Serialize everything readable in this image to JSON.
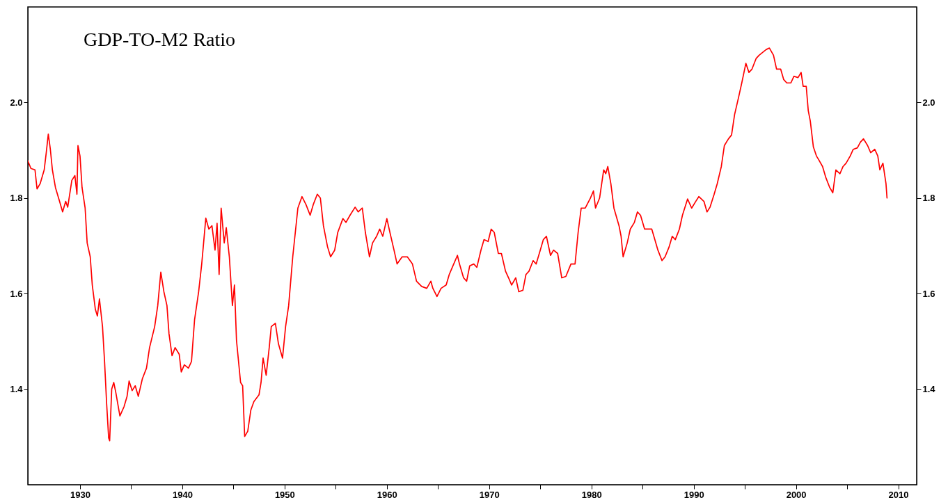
{
  "chart_data": {
    "type": "line",
    "title": "GDP-TO-M2 Ratio",
    "color": "#ff0000",
    "x": [
      1924.9,
      1925.2,
      1925.6,
      1925.8,
      1926.1,
      1926.5,
      1926.7,
      1926.9,
      1927.1,
      1927.3,
      1927.6,
      1928.0,
      1928.3,
      1928.6,
      1928.8,
      1929.2,
      1929.5,
      1929.7,
      1929.8,
      1930.0,
      1930.2,
      1930.5,
      1930.7,
      1931.0,
      1931.2,
      1931.5,
      1931.7,
      1931.9,
      1932.2,
      1932.4,
      1932.6,
      1932.8,
      1932.9,
      1933.1,
      1933.3,
      1933.5,
      1933.9,
      1934.3,
      1934.6,
      1934.8,
      1935.1,
      1935.4,
      1935.7,
      1936.1,
      1936.5,
      1936.8,
      1937.3,
      1937.6,
      1937.9,
      1938.2,
      1938.5,
      1938.7,
      1939.0,
      1939.3,
      1939.7,
      1939.9,
      1940.2,
      1940.6,
      1940.9,
      1941.2,
      1941.6,
      1941.9,
      1942.3,
      1942.6,
      1942.9,
      1943.2,
      1943.4,
      1943.6,
      1943.8,
      1944.1,
      1944.3,
      1944.6,
      1944.9,
      1945.1,
      1945.3,
      1945.7,
      1945.9,
      1946.1,
      1946.4,
      1946.7,
      1947.0,
      1947.5,
      1947.7,
      1947.9,
      1948.2,
      1948.5,
      1948.7,
      1949.1,
      1949.4,
      1949.8,
      1950.1,
      1950.4,
      1950.8,
      1951.3,
      1951.7,
      1952.1,
      1952.5,
      1952.8,
      1953.2,
      1953.5,
      1953.8,
      1954.2,
      1954.5,
      1954.9,
      1955.2,
      1955.7,
      1956.0,
      1956.4,
      1956.9,
      1957.2,
      1957.6,
      1957.9,
      1958.3,
      1958.6,
      1959.0,
      1959.3,
      1959.6,
      1960.0,
      1960.3,
      1960.7,
      1961.0,
      1961.5,
      1962.0,
      1962.5,
      1962.9,
      1963.4,
      1963.9,
      1964.3,
      1964.5,
      1964.9,
      1965.3,
      1965.8,
      1966.1,
      1966.4,
      1966.9,
      1967.1,
      1967.5,
      1967.8,
      1968.1,
      1968.5,
      1968.8,
      1969.2,
      1969.5,
      1969.9,
      1970.2,
      1970.5,
      1970.9,
      1971.2,
      1971.6,
      1971.9,
      1972.2,
      1972.6,
      1972.9,
      1973.3,
      1973.6,
      1973.9,
      1974.3,
      1974.6,
      1975.0,
      1975.3,
      1975.6,
      1976.0,
      1976.3,
      1976.7,
      1977.1,
      1977.5,
      1978.0,
      1978.4,
      1978.7,
      1979.0,
      1979.4,
      1979.9,
      1980.2,
      1980.4,
      1980.8,
      1981.2,
      1981.4,
      1981.6,
      1981.9,
      1982.2,
      1982.7,
      1982.9,
      1983.1,
      1983.5,
      1983.8,
      1984.2,
      1984.5,
      1984.8,
      1985.2,
      1985.5,
      1985.9,
      1986.2,
      1986.5,
      1986.9,
      1987.2,
      1987.6,
      1987.9,
      1988.2,
      1988.6,
      1988.9,
      1989.4,
      1989.8,
      1990.2,
      1990.5,
      1991.0,
      1991.3,
      1991.6,
      1992.0,
      1992.3,
      1992.7,
      1993.0,
      1993.4,
      1993.7,
      1994.0,
      1994.4,
      1994.7,
      1995.1,
      1995.4,
      1995.7,
      1996.1,
      1996.4,
      1996.8,
      1997.1,
      1997.4,
      1997.8,
      1998.1,
      1998.5,
      1998.8,
      1999.1,
      1999.5,
      1999.8,
      2000.2,
      2000.5,
      2000.7,
      2001.0,
      2001.2,
      2001.4,
      2001.7,
      2002.0,
      2002.2,
      2002.6,
      2002.9,
      2003.3,
      2003.6,
      2003.9,
      2004.3,
      2004.6,
      2004.9,
      2005.3,
      2005.6,
      2006.0,
      2006.3,
      2006.6,
      2007.0,
      2007.3,
      2007.7,
      2008.0,
      2008.2,
      2008.5,
      2008.8,
      2008.9
    ],
    "values": [
      1.878,
      1.862,
      1.859,
      1.819,
      1.83,
      1.859,
      1.895,
      1.934,
      1.902,
      1.859,
      1.822,
      1.793,
      1.771,
      1.793,
      1.781,
      1.837,
      1.847,
      1.808,
      1.91,
      1.888,
      1.822,
      1.779,
      1.706,
      1.677,
      1.618,
      1.567,
      1.553,
      1.589,
      1.531,
      1.458,
      1.371,
      1.298,
      1.292,
      1.4,
      1.414,
      1.393,
      1.344,
      1.363,
      1.385,
      1.417,
      1.397,
      1.407,
      1.385,
      1.422,
      1.444,
      1.487,
      1.531,
      1.575,
      1.645,
      1.604,
      1.575,
      1.516,
      1.47,
      1.487,
      1.473,
      1.436,
      1.451,
      1.444,
      1.458,
      1.545,
      1.604,
      1.662,
      1.758,
      1.735,
      1.742,
      1.691,
      1.747,
      1.64,
      1.779,
      1.706,
      1.738,
      1.677,
      1.575,
      1.618,
      1.502,
      1.414,
      1.407,
      1.301,
      1.312,
      1.356,
      1.374,
      1.388,
      1.414,
      1.465,
      1.429,
      1.487,
      1.531,
      1.538,
      1.495,
      1.465,
      1.531,
      1.575,
      1.677,
      1.779,
      1.803,
      1.786,
      1.764,
      1.786,
      1.808,
      1.8,
      1.742,
      1.698,
      1.677,
      1.691,
      1.728,
      1.757,
      1.749,
      1.764,
      1.781,
      1.771,
      1.779,
      1.728,
      1.677,
      1.706,
      1.72,
      1.735,
      1.72,
      1.757,
      1.728,
      1.691,
      1.662,
      1.677,
      1.677,
      1.662,
      1.626,
      1.615,
      1.611,
      1.626,
      1.611,
      1.594,
      1.611,
      1.618,
      1.64,
      1.655,
      1.68,
      1.662,
      1.633,
      1.626,
      1.658,
      1.662,
      1.655,
      1.691,
      1.713,
      1.709,
      1.735,
      1.728,
      1.684,
      1.684,
      1.647,
      1.633,
      1.618,
      1.633,
      1.604,
      1.607,
      1.64,
      1.647,
      1.669,
      1.662,
      1.691,
      1.713,
      1.72,
      1.68,
      1.691,
      1.684,
      1.633,
      1.636,
      1.662,
      1.662,
      1.728,
      1.779,
      1.779,
      1.8,
      1.815,
      1.779,
      1.8,
      1.859,
      1.851,
      1.866,
      1.83,
      1.779,
      1.742,
      1.72,
      1.677,
      1.706,
      1.735,
      1.749,
      1.771,
      1.764,
      1.735,
      1.735,
      1.735,
      1.713,
      1.691,
      1.669,
      1.677,
      1.698,
      1.72,
      1.713,
      1.735,
      1.764,
      1.798,
      1.779,
      1.793,
      1.803,
      1.793,
      1.771,
      1.781,
      1.808,
      1.83,
      1.866,
      1.91,
      1.924,
      1.932,
      1.975,
      2.012,
      2.041,
      2.082,
      2.063,
      2.07,
      2.092,
      2.099,
      2.106,
      2.111,
      2.114,
      2.099,
      2.07,
      2.07,
      2.048,
      2.041,
      2.041,
      2.055,
      2.052,
      2.063,
      2.034,
      2.034,
      1.983,
      1.961,
      1.907,
      1.888,
      1.881,
      1.866,
      1.844,
      1.822,
      1.811,
      1.859,
      1.851,
      1.866,
      1.873,
      1.888,
      1.902,
      1.905,
      1.917,
      1.924,
      1.91,
      1.895,
      1.902,
      1.888,
      1.859,
      1.873,
      1.83,
      1.8
    ],
    "xlim": [
      1924.9,
      2011.8
    ],
    "xticks": [
      1930,
      {
        "value": 1935,
        "label": null
      },
      1940,
      {
        "value": 1945,
        "label": null
      },
      1950,
      {
        "value": 1955,
        "label": null
      },
      1960,
      {
        "value": 1965,
        "label": null
      },
      1970,
      {
        "value": 1975,
        "label": null
      },
      1980,
      {
        "value": 1985,
        "label": null
      },
      1990,
      {
        "value": 1995,
        "label": null
      },
      2000,
      {
        "value": 2005,
        "label": null
      },
      2010
    ],
    "ylim": [
      1.2,
      2.2
    ],
    "yticks": [
      1.4,
      1.6,
      1.8,
      {
        "value": 2,
        "label": "2.0"
      }
    ],
    "y2lim": [
      1.2,
      2.2
    ],
    "y2ticks": [
      1.4,
      1.6,
      1.8,
      {
        "value": 2,
        "label": "2.0"
      }
    ]
  }
}
